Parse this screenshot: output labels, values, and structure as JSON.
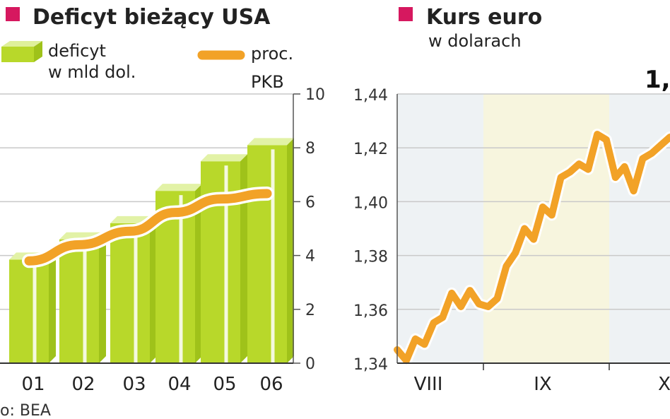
{
  "chart_data": [
    {
      "type": "bar",
      "title": "Deficyt bieżący USA",
      "title_marker_color": "#d6185f",
      "categories": [
        "01",
        "02",
        "03",
        "04",
        "05",
        "06"
      ],
      "series": [
        {
          "name": "deficyt w mld dol.",
          "type": "bar",
          "color": "#b8d82a",
          "values": [
            385,
            460,
            520,
            640,
            750,
            810
          ]
        },
        {
          "name": "proc. PKB",
          "type": "line",
          "axis": "right",
          "color": "#f2a227",
          "values": [
            3.8,
            4.4,
            4.9,
            5.6,
            6.1,
            6.3
          ]
        }
      ],
      "legend": [
        {
          "label_lines": [
            "deficyt",
            "w mld dol."
          ],
          "icon": "green-3d-bar"
        },
        {
          "label_lines": [
            "proc.",
            "PKB"
          ],
          "icon": "orange-line"
        }
      ],
      "y_right": {
        "ticks": [
          "0",
          "2",
          "4",
          "6",
          "8",
          "10"
        ],
        "range": [
          0,
          10
        ]
      },
      "source": "o: BEA",
      "grid": true
    },
    {
      "type": "line",
      "title": "Kurs euro",
      "title_marker_color": "#d6185f",
      "subtitle": "w dolarach",
      "y_left": {
        "ticks": [
          "1,44",
          "1,42",
          "1,40",
          "1,38",
          "1,36",
          "1,34"
        ],
        "range": [
          1.34,
          1.44
        ]
      },
      "x_labels": [
        "VIII",
        "IX",
        "X"
      ],
      "annotation": "1,",
      "line_color": "#f2a227",
      "series": [
        {
          "values": [
            1.345,
            1.341,
            1.349,
            1.347,
            1.355,
            1.357,
            1.366,
            1.361,
            1.367,
            1.362,
            1.361,
            1.364,
            1.376,
            1.381,
            1.39,
            1.386,
            1.398,
            1.395,
            1.409,
            1.411,
            1.414,
            1.412,
            1.425,
            1.423,
            1.409,
            1.413,
            1.404,
            1.416,
            1.418,
            1.421,
            1.424
          ]
        }
      ]
    }
  ]
}
